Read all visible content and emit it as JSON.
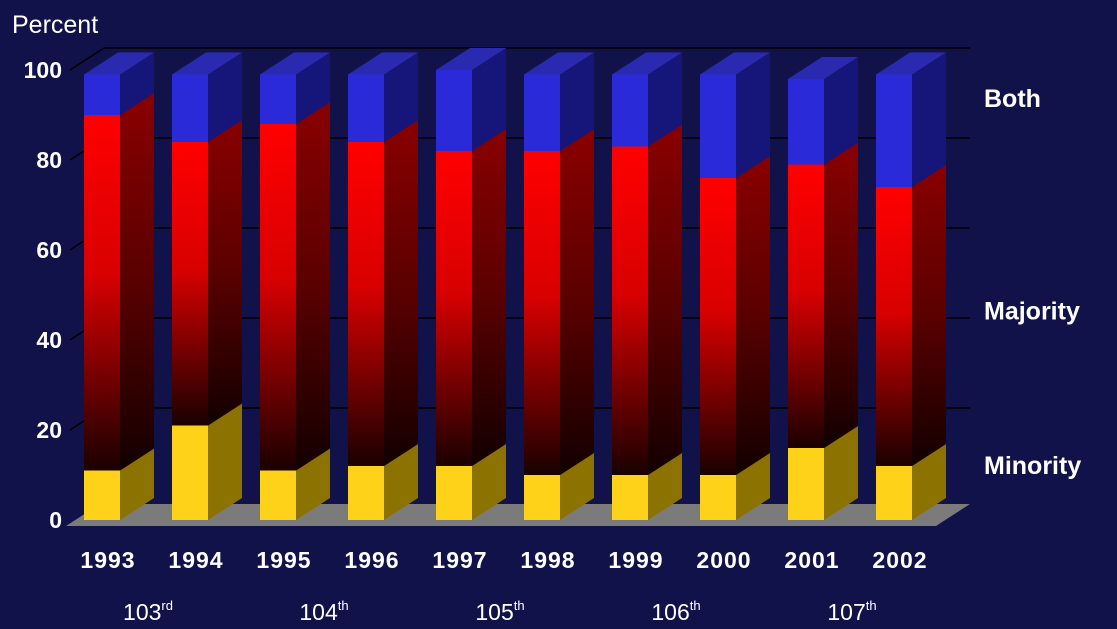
{
  "chart_data": {
    "type": "bar",
    "stacked": true,
    "three_d": true,
    "ylabel": "Percent",
    "ylim": [
      0,
      100
    ],
    "yticks": [
      0,
      20,
      40,
      60,
      80,
      100
    ],
    "grid": true,
    "categories": [
      "1993",
      "1994",
      "1995",
      "1996",
      "1997",
      "1998",
      "1999",
      "2000",
      "2001",
      "2002"
    ],
    "series": [
      {
        "name": "Minority",
        "color": "#ffd21a",
        "values": [
          11,
          21,
          11,
          12,
          12,
          10,
          10,
          10,
          16,
          12
        ]
      },
      {
        "name": "Majority",
        "color": "#ff0000",
        "values": [
          79,
          63,
          77,
          72,
          70,
          72,
          73,
          66,
          63,
          62
        ]
      },
      {
        "name": "Both",
        "color": "#2a2ad8",
        "values": [
          9,
          15,
          11,
          15,
          18,
          17,
          16,
          23,
          19,
          25
        ]
      }
    ],
    "congress_labels": [
      {
        "number": "103",
        "suffix": "rd"
      },
      {
        "number": "104",
        "suffix": "th"
      },
      {
        "number": "105",
        "suffix": "th"
      },
      {
        "number": "106",
        "suffix": "th"
      },
      {
        "number": "107",
        "suffix": "th"
      }
    ]
  }
}
